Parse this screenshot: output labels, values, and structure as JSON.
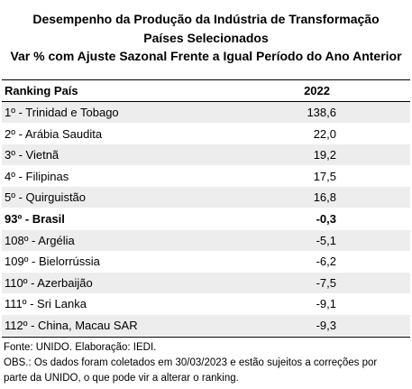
{
  "title": {
    "line1": "Desempenho da Produção da Indústria de Transformação",
    "line2": "Países Selecionados",
    "line3": "Var % com Ajuste Sazonal Frente a Igual Período do Ano Anterior"
  },
  "table": {
    "header": {
      "col1": "Ranking País",
      "col2": "2022"
    },
    "rows": [
      {
        "country": "1º - Trinidad e Tobago",
        "value": "138,6",
        "bold": false
      },
      {
        "country": "2º - Arábia Saudita",
        "value": "22,0",
        "bold": false
      },
      {
        "country": "3º - Vietnã",
        "value": "19,2",
        "bold": false
      },
      {
        "country": "4º - Filipinas",
        "value": "17,5",
        "bold": false
      },
      {
        "country": "5º - Quirguistão",
        "value": "16,8",
        "bold": false
      },
      {
        "country": "93º - Brasil",
        "value": "-0,3",
        "bold": true
      },
      {
        "country": "108º - Argélia",
        "value": "-5,1",
        "bold": false
      },
      {
        "country": "109º - Bielorrússia",
        "value": "-6,2",
        "bold": false
      },
      {
        "country": "110º - Azerbaijão",
        "value": "-7,5",
        "bold": false
      },
      {
        "country": "111º - Sri Lanka",
        "value": "-9,1",
        "bold": false
      },
      {
        "country": "112º - China, Macau SAR",
        "value": "-9,3",
        "bold": false
      }
    ]
  },
  "notes": {
    "source": "Fonte: UNIDO. Elaboração: IEDI.",
    "obs_line1": "OBS.: Os dados foram coletados em 30/03/2023 e estão sujeitos a correções por",
    "obs_line2": "parte da UNIDO, o que pode vir a alterar o ranking."
  }
}
